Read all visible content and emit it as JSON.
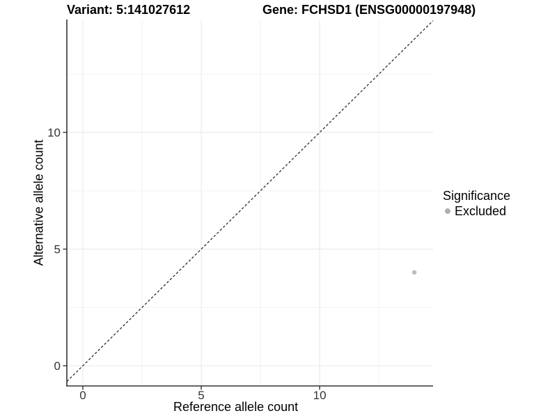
{
  "header": {
    "title_left": "Variant: 5:141027612",
    "title_right": "Gene: FCHSD1 (ENSG00000197948)"
  },
  "chart_data": {
    "type": "scatter",
    "title": "Variant: 5:141027612   Gene: FCHSD1 (ENSG00000197948)",
    "xlabel": "Reference allele count",
    "ylabel": "Alternative allele count",
    "xlim": [
      -0.676,
      14.79
    ],
    "ylim": [
      -0.866,
      14.81
    ],
    "x_breaks": [
      0,
      5,
      10
    ],
    "y_breaks": [
      0,
      5,
      10
    ],
    "x_minor_breaks": [
      2.5,
      7.5,
      12.5
    ],
    "y_minor_breaks": [
      2.5,
      7.5,
      12.5
    ],
    "grid": true,
    "series": [
      {
        "name": "Excluded",
        "points": [
          {
            "x": 14,
            "y": 4
          }
        ],
        "color": "#bdbdbd"
      }
    ],
    "reference_line": {
      "kind": "identity",
      "slope": 1,
      "intercept": 0,
      "style": "dashed"
    },
    "legend": {
      "position": "right",
      "title": "Significance",
      "entries": [
        {
          "label": "Excluded",
          "color": "#b0b0b0"
        }
      ]
    },
    "colors": {
      "point": "#bdbdbd",
      "grid_major": "#e9e9e9",
      "grid_minor": "#f2f2f2",
      "axis_line": "#333333",
      "tick_mark": "#333333",
      "tick_label": "#333333",
      "reference_line": "#1a1a1a",
      "background": "#ffffff"
    }
  }
}
